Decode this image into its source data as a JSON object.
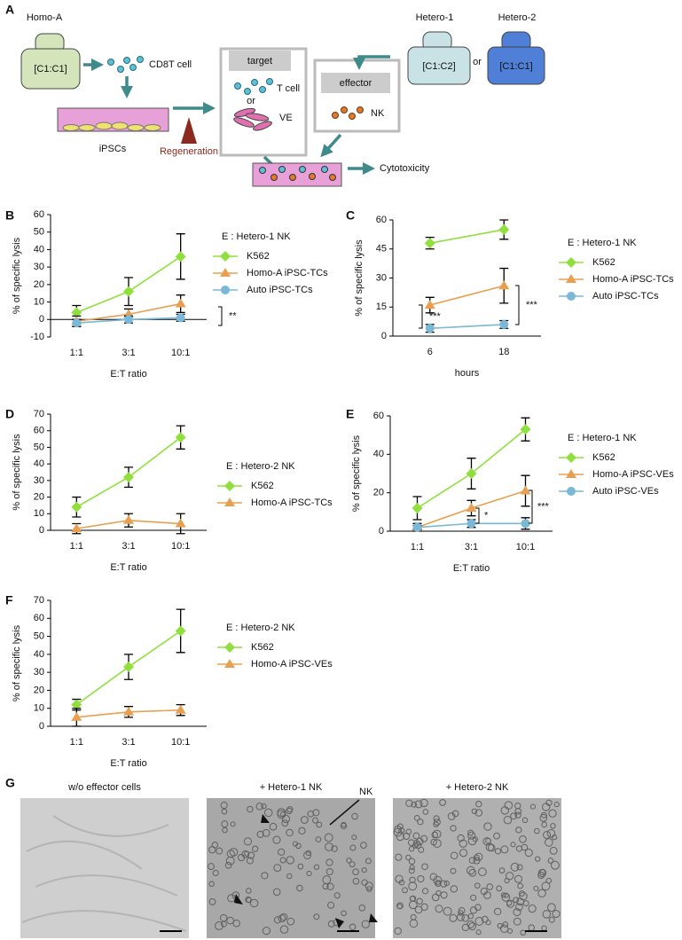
{
  "panel_labels": [
    "A",
    "B",
    "C",
    "D",
    "E",
    "F",
    "G"
  ],
  "diagram": {
    "homo_a": "Homo-A",
    "homo_a_hla": "[C1:C1]",
    "cd8t": "CD8T cell",
    "ipscs": "iPSCs",
    "regeneration": "Regeneration",
    "target": "target",
    "t_cell": "T cell",
    "or_target": "or",
    "ve": "VE",
    "effector": "effector",
    "nk": "NK",
    "hetero1": "Hetero-1",
    "hetero1_hla": "[C1:C2]",
    "or_hetero": "or",
    "hetero2": "Hetero-2",
    "hetero2_hla": "[C1:C1]",
    "cytotoxicity": "Cytotoxicity"
  },
  "micrographs": {
    "titles": [
      "w/o effector cells",
      "+ Hetero-1 NK",
      "+ Hetero-2 NK"
    ],
    "nk_arrow": "NK"
  },
  "chart_data": [
    {
      "type": "line",
      "legend_title": "E : Hetero-1 NK",
      "xlabel": "E:T ratio",
      "ylabel": "% of specific lysis",
      "categories": [
        "1:1",
        "3:1",
        "10:1"
      ],
      "ylim": [
        -10,
        60
      ],
      "yticks": [
        -10,
        0,
        10,
        20,
        30,
        40,
        50,
        60
      ],
      "series": [
        {
          "name": "K562",
          "color": "#8fe03c",
          "marker": "diamond",
          "values": [
            4,
            16,
            36
          ],
          "errors": [
            4,
            8,
            13
          ]
        },
        {
          "name": " Homo-A iPSC-TCs",
          "color": "#e8a050",
          "marker": "triangle",
          "values": [
            -1,
            3,
            9
          ],
          "errors": [
            3,
            3,
            5
          ]
        },
        {
          "name": "Auto iPSC-TCs",
          "color": "#7ab8d8",
          "marker": "circle",
          "values": [
            -2,
            0,
            1
          ],
          "errors": [
            2,
            2,
            2
          ]
        }
      ],
      "annotations": [
        "**"
      ]
    },
    {
      "type": "line",
      "legend_title": "E : Hetero-1 NK",
      "xlabel": "hours",
      "ylabel": "% of specific lysis",
      "categories": [
        "6",
        "18"
      ],
      "ylim": [
        0,
        60
      ],
      "yticks": [
        0,
        15,
        30,
        45,
        60
      ],
      "series": [
        {
          "name": "K562",
          "color": "#8fe03c",
          "marker": "diamond",
          "values": [
            48,
            55
          ],
          "errors": [
            3,
            5
          ]
        },
        {
          "name": " Homo-A iPSC-TCs",
          "color": "#e8a050",
          "marker": "triangle",
          "values": [
            16,
            26
          ],
          "errors": [
            4,
            9
          ]
        },
        {
          "name": "Auto iPSC-TCs",
          "color": "#7ab8d8",
          "marker": "circle",
          "values": [
            4,
            6
          ],
          "errors": [
            2,
            2
          ]
        }
      ],
      "annotations": [
        "***",
        "***"
      ]
    },
    {
      "type": "line",
      "legend_title": "E : Hetero-2 NK",
      "xlabel": "E:T ratio",
      "ylabel": "% of specific lysis",
      "categories": [
        "1:1",
        "3:1",
        "10:1"
      ],
      "ylim": [
        0,
        70
      ],
      "yticks": [
        0,
        10,
        20,
        30,
        40,
        50,
        60,
        70
      ],
      "series": [
        {
          "name": "K562",
          "color": "#8fe03c",
          "marker": "diamond",
          "values": [
            14,
            32,
            56
          ],
          "errors": [
            6,
            6,
            7
          ]
        },
        {
          "name": "Homo-A iPSC-TCs",
          "color": "#e8a050",
          "marker": "triangle",
          "values": [
            1,
            6,
            4
          ],
          "errors": [
            3,
            4,
            6
          ]
        }
      ],
      "annotations": []
    },
    {
      "type": "line",
      "legend_title": "E : Hetero-1 NK",
      "xlabel": "E:T ratio",
      "ylabel": "% of specific lysis",
      "categories": [
        "1:1",
        "3:1",
        "10:1"
      ],
      "ylim": [
        0,
        60
      ],
      "yticks": [
        0,
        20,
        40,
        60
      ],
      "series": [
        {
          "name": "K562",
          "color": "#8fe03c",
          "marker": "diamond",
          "values": [
            12,
            30,
            53
          ],
          "errors": [
            6,
            8,
            6
          ]
        },
        {
          "name": "Homo-A iPSC-VEs",
          "color": "#e8a050",
          "marker": "triangle",
          "values": [
            2,
            12,
            21
          ],
          "errors": [
            2,
            4,
            8
          ]
        },
        {
          "name": "Auto iPSC-VEs",
          "color": "#7ab8d8",
          "marker": "circle",
          "values": [
            2,
            4,
            4
          ],
          "errors": [
            1,
            2,
            3
          ]
        }
      ],
      "annotations": [
        "*",
        "***"
      ]
    },
    {
      "type": "line",
      "legend_title": "E : Hetero-2 NK",
      "xlabel": "E:T ratio",
      "ylabel": "% of specific lysis",
      "categories": [
        "1:1",
        "3:1",
        "10:1"
      ],
      "ylim": [
        0,
        70
      ],
      "yticks": [
        0,
        10,
        20,
        30,
        40,
        50,
        60,
        70
      ],
      "series": [
        {
          "name": "K562",
          "color": "#8fe03c",
          "marker": "diamond",
          "values": [
            12,
            33,
            53
          ],
          "errors": [
            3,
            7,
            12
          ]
        },
        {
          "name": "Homo-A iPSC-VEs",
          "color": "#e8a050",
          "marker": "triangle",
          "values": [
            5,
            8,
            9
          ],
          "errors": [
            5,
            3,
            3
          ]
        }
      ],
      "annotations": []
    }
  ]
}
